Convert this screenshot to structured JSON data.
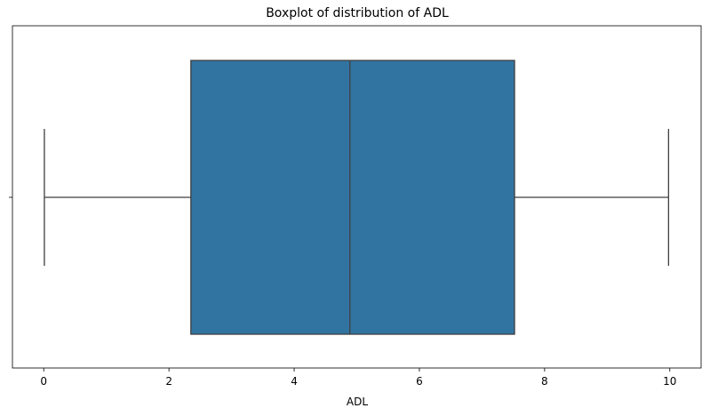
{
  "chart_data": {
    "type": "boxplot",
    "title": "Boxplot of distribution of ADL",
    "xlabel": "ADL",
    "ylabel": "",
    "xlim": [
      -0.5,
      10.5
    ],
    "x_ticks": [
      0,
      2,
      4,
      6,
      8,
      10
    ],
    "x_tick_labels": [
      "0",
      "2",
      "4",
      "6",
      "8",
      "10"
    ],
    "grid": false,
    "box": {
      "whisker_low": 0.01,
      "q1": 2.35,
      "median": 4.89,
      "q3": 7.52,
      "whisker_high": 9.98
    },
    "colors": {
      "box_fill": "#3274a1",
      "line": "#3f3f3f",
      "axes": "#000000"
    }
  }
}
